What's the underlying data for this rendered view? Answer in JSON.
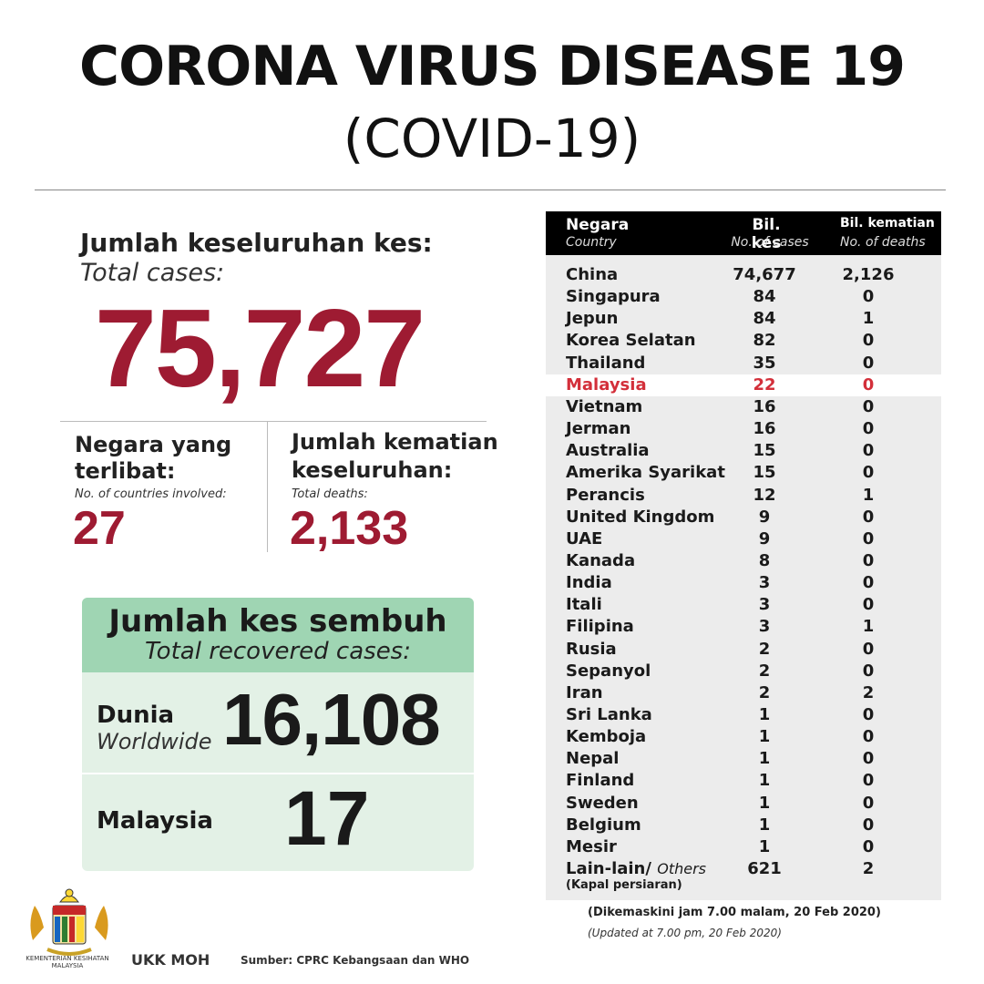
{
  "header": {
    "title": "CORONA VIRUS DISEASE 19",
    "subtitle": "(COVID-19)"
  },
  "totals": {
    "total_label": "Jumlah keseluruhan kes:",
    "total_label_en": "Total cases:",
    "total_value": "75,727",
    "countries_label": "Negara yang terlibat:",
    "countries_label_en": "No. of countries involved:",
    "countries_value": "27",
    "deaths_label": "Jumlah kematian keseluruhan:",
    "deaths_label_en": "Total deaths:",
    "deaths_value": "2,133"
  },
  "recovered": {
    "title": "Jumlah kes sembuh",
    "title_en": "Total recovered cases:",
    "world_label": "Dunia",
    "world_label_en": "Worldwide",
    "world_value": "16,108",
    "malaysia_label": "Malaysia",
    "malaysia_value": "17"
  },
  "table": {
    "headers": {
      "country": "Negara",
      "country_en": "Country",
      "cases": "Bil. kes",
      "cases_en": "No. of cases",
      "deaths": "Bil. kematian",
      "deaths_en": "No. of deaths"
    },
    "rows": [
      {
        "country": "China",
        "cases": "74,677",
        "deaths": "2,126"
      },
      {
        "country": "Singapura",
        "cases": "84",
        "deaths": "0"
      },
      {
        "country": "Jepun",
        "cases": "84",
        "deaths": "1"
      },
      {
        "country": "Korea Selatan",
        "cases": "82",
        "deaths": "0"
      },
      {
        "country": "Thailand",
        "cases": "35",
        "deaths": "0"
      },
      {
        "country": "Malaysia",
        "cases": "22",
        "deaths": "0",
        "highlight": true
      },
      {
        "country": "Vietnam",
        "cases": "16",
        "deaths": "0"
      },
      {
        "country": "Jerman",
        "cases": "16",
        "deaths": "0"
      },
      {
        "country": "Australia",
        "cases": "15",
        "deaths": "0"
      },
      {
        "country": "Amerika Syarikat",
        "cases": "15",
        "deaths": "0"
      },
      {
        "country": "Perancis",
        "cases": "12",
        "deaths": "1"
      },
      {
        "country": "United Kingdom",
        "cases": "9",
        "deaths": "0"
      },
      {
        "country": "UAE",
        "cases": "9",
        "deaths": "0"
      },
      {
        "country": "Kanada",
        "cases": "8",
        "deaths": "0"
      },
      {
        "country": "India",
        "cases": "3",
        "deaths": "0"
      },
      {
        "country": "Itali",
        "cases": "3",
        "deaths": "0"
      },
      {
        "country": "Filipina",
        "cases": "3",
        "deaths": "1"
      },
      {
        "country": "Rusia",
        "cases": "2",
        "deaths": "0"
      },
      {
        "country": "Sepanyol",
        "cases": "2",
        "deaths": "0"
      },
      {
        "country": "Iran",
        "cases": "2",
        "deaths": "2"
      },
      {
        "country": "Sri Lanka",
        "cases": "1",
        "deaths": "0"
      },
      {
        "country": "Kemboja",
        "cases": "1",
        "deaths": "0"
      },
      {
        "country": "Nepal",
        "cases": "1",
        "deaths": "0"
      },
      {
        "country": "Finland",
        "cases": "1",
        "deaths": "0"
      },
      {
        "country": "Sweden",
        "cases": "1",
        "deaths": "0"
      },
      {
        "country": "Belgium",
        "cases": "1",
        "deaths": "0"
      },
      {
        "country": "Mesir",
        "cases": "1",
        "deaths": "0"
      }
    ],
    "others": {
      "label": "Lain-lain/",
      "label_en": "Others",
      "sub": "(Kapal persiaran)",
      "cases": "621",
      "deaths": "2"
    },
    "updated": "(Dikemaskini  jam 7.00 malam, 20 Feb 2020)",
    "updated_en": "(Updated at 7.00 pm, 20 Feb 2020)"
  },
  "footer": {
    "ministry": "KEMENTERIAN KESIHATAN MALAYSIA",
    "ukk": "UKK MOH",
    "source": "Sumber: CPRC Kebangsaan dan WHO",
    "logo_icon": "malaysia-coat-of-arms-icon"
  },
  "colors": {
    "accent_red": "#9e1b32",
    "highlight_red": "#d32f3a",
    "green_header": "#9fd5b3",
    "green_body": "#e3f1e6"
  }
}
